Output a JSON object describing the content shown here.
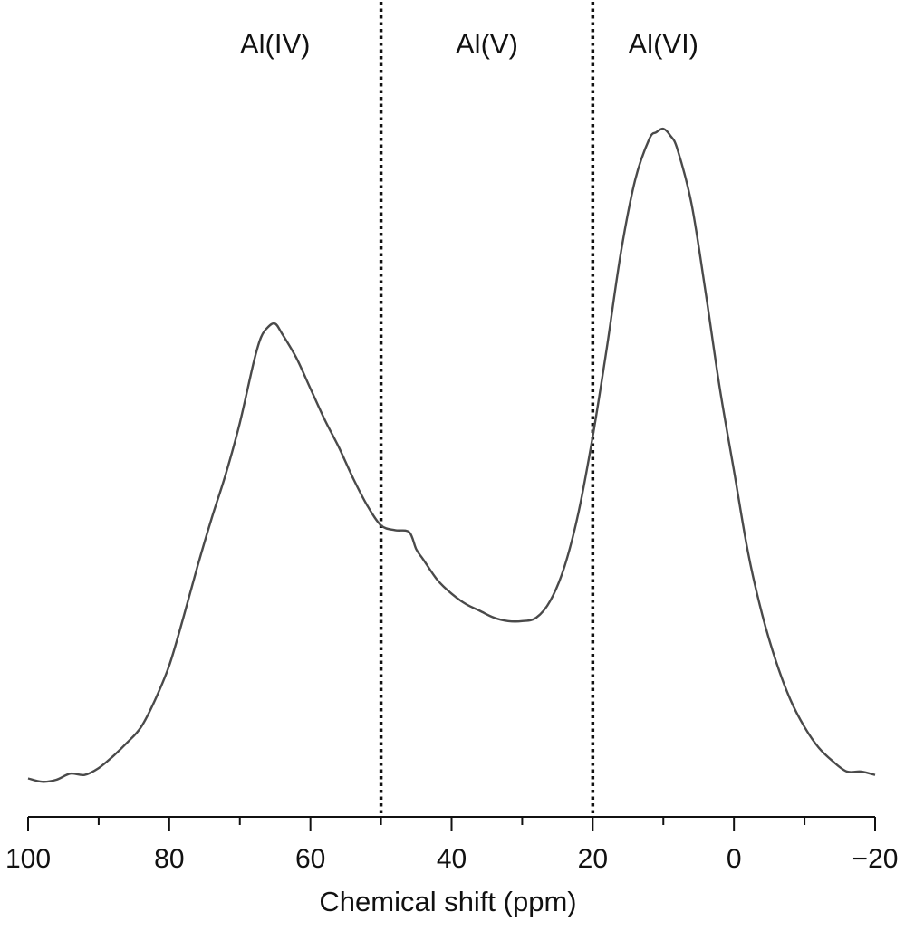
{
  "chart_data": {
    "type": "line",
    "title": "",
    "xlabel": "Chemical shift (ppm)",
    "ylabel": "",
    "x_reversed": true,
    "xlim": [
      100,
      -20
    ],
    "ylim": [
      0,
      100
    ],
    "grid": false,
    "legend": "none",
    "x_ticks": [
      100,
      80,
      60,
      40,
      20,
      0,
      -20
    ],
    "x_tick_labels": [
      "100",
      "80",
      "60",
      "40",
      "20",
      "0",
      "−20"
    ],
    "x_minor_ticks": [
      90,
      70,
      50,
      30,
      10,
      -10
    ],
    "region_dividers": [
      50,
      20
    ],
    "region_labels": [
      {
        "text": "Al(IV)",
        "x": 65
      },
      {
        "text": "Al(V)",
        "x": 35
      },
      {
        "text": "Al(VI)",
        "x": 10
      }
    ],
    "series": [
      {
        "color": "#4a4a4a",
        "x": [
          100,
          98,
          96,
          94,
          92,
          90,
          88,
          86,
          84,
          82,
          80,
          78,
          76,
          74,
          72,
          70,
          68,
          67,
          66,
          65,
          64,
          62,
          60,
          58,
          56,
          54,
          52,
          50,
          48,
          46,
          45,
          44,
          42,
          40,
          38,
          36,
          34,
          32,
          30,
          28,
          26,
          24,
          22,
          20,
          18,
          16,
          14,
          12,
          11,
          10,
          9,
          8,
          6,
          4,
          2,
          0,
          -2,
          -4,
          -6,
          -8,
          -10,
          -12,
          -14,
          -16,
          -18,
          -20
        ],
        "y": [
          1.0,
          0.5,
          0.8,
          1.7,
          1.5,
          2.5,
          4.2,
          6.2,
          8.5,
          12.5,
          17.5,
          24.5,
          32,
          39,
          45.5,
          53,
          62,
          65.5,
          67,
          67.5,
          66,
          62.5,
          58,
          53.5,
          49.5,
          45,
          41,
          38,
          37.3,
          37,
          34.5,
          33,
          30,
          28,
          26.5,
          25.5,
          24.5,
          24,
          24,
          24.5,
          27,
          32,
          40,
          51,
          64,
          78,
          88.5,
          94.5,
          95.5,
          96,
          95,
          93,
          85,
          72,
          58,
          46,
          34,
          25,
          18,
          12.5,
          8.5,
          5.5,
          3.5,
          2.0,
          2.0,
          1.5
        ]
      }
    ]
  }
}
